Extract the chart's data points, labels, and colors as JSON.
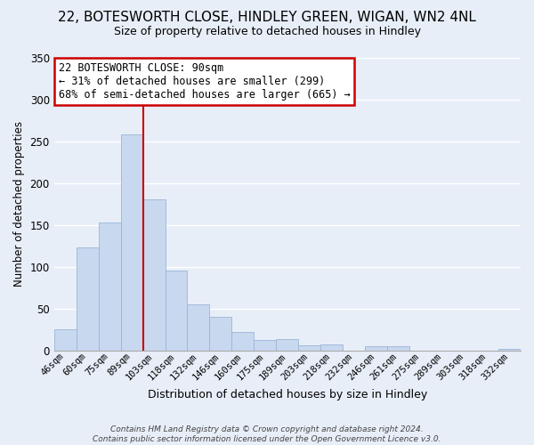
{
  "title": "22, BOTESWORTH CLOSE, HINDLEY GREEN, WIGAN, WN2 4NL",
  "subtitle": "Size of property relative to detached houses in Hindley",
  "xlabel": "Distribution of detached houses by size in Hindley",
  "ylabel": "Number of detached properties",
  "categories": [
    "46sqm",
    "60sqm",
    "75sqm",
    "89sqm",
    "103sqm",
    "118sqm",
    "132sqm",
    "146sqm",
    "160sqm",
    "175sqm",
    "189sqm",
    "203sqm",
    "218sqm",
    "232sqm",
    "246sqm",
    "261sqm",
    "275sqm",
    "289sqm",
    "303sqm",
    "318sqm",
    "332sqm"
  ],
  "values": [
    25,
    123,
    153,
    258,
    181,
    95,
    55,
    40,
    22,
    12,
    14,
    6,
    7,
    0,
    5,
    5,
    0,
    0,
    0,
    0,
    2
  ],
  "bar_color": "#c8d8ee",
  "bar_edge_color": "#9ab5d8",
  "vline_color": "#cc0000",
  "annotation_line1": "22 BOTESWORTH CLOSE: 90sqm",
  "annotation_line2": "← 31% of detached houses are smaller (299)",
  "annotation_line3": "68% of semi-detached houses are larger (665) →",
  "annotation_box_color": "#ffffff",
  "annotation_box_edge": "#cc0000",
  "ylim": [
    0,
    350
  ],
  "yticks": [
    0,
    50,
    100,
    150,
    200,
    250,
    300,
    350
  ],
  "footer_text": "Contains HM Land Registry data © Crown copyright and database right 2024.\nContains public sector information licensed under the Open Government Licence v3.0.",
  "background_color": "#e8eef8",
  "plot_bg_color": "#e8eef8",
  "grid_color": "#ffffff",
  "title_fontsize": 11,
  "subtitle_fontsize": 9
}
